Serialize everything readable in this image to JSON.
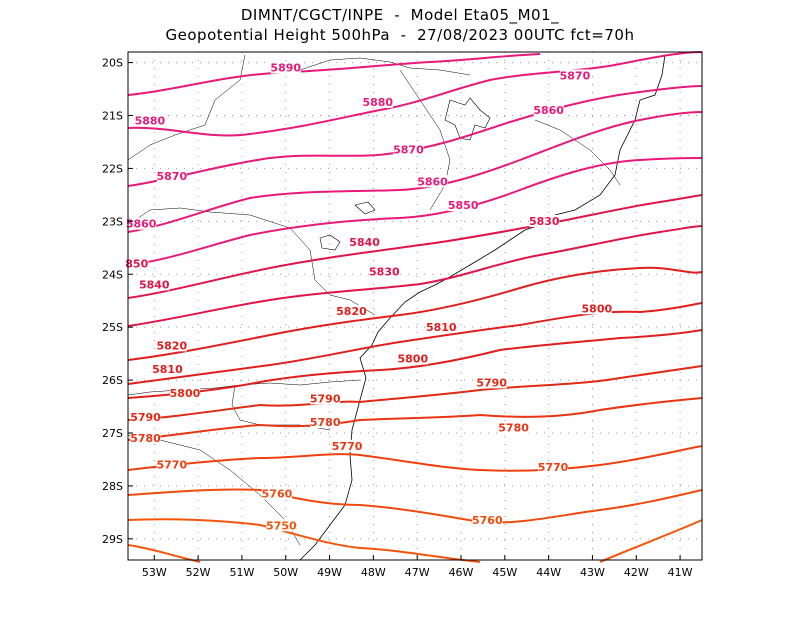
{
  "header": {
    "line1": "DIMNT/CGCT/INPE  -  Model Eta05_M01_",
    "line2": "Geopotential Height 500hPa  -  27/08/2023 00UTC fct=70h"
  },
  "map": {
    "lon_range": [
      -53.6,
      -40.5
    ],
    "lat_range": [
      -29.4,
      -19.8
    ],
    "lat_ticks": [
      {
        "value": -20,
        "label": "20S"
      },
      {
        "value": -21,
        "label": "21S"
      },
      {
        "value": -22,
        "label": "22S"
      },
      {
        "value": -23,
        "label": "23S"
      },
      {
        "value": -24,
        "label": "24S"
      },
      {
        "value": -25,
        "label": "25S"
      },
      {
        "value": -26,
        "label": "26S"
      },
      {
        "value": -27,
        "label": "27S"
      },
      {
        "value": -28,
        "label": "28S"
      },
      {
        "value": -29,
        "label": "29S"
      }
    ],
    "lon_ticks": [
      {
        "value": -53,
        "label": "53W"
      },
      {
        "value": -52,
        "label": "52W"
      },
      {
        "value": -51,
        "label": "51W"
      },
      {
        "value": -50,
        "label": "50W"
      },
      {
        "value": -49,
        "label": "49W"
      },
      {
        "value": -48,
        "label": "48W"
      },
      {
        "value": -47,
        "label": "47W"
      },
      {
        "value": -46,
        "label": "46W"
      },
      {
        "value": -45,
        "label": "45W"
      },
      {
        "value": -44,
        "label": "44W"
      },
      {
        "value": -43,
        "label": "43W"
      },
      {
        "value": -42,
        "label": "42W"
      },
      {
        "value": -41,
        "label": "41W"
      }
    ],
    "grid": "dotted"
  },
  "contour_labels": [
    {
      "text": "5890",
      "lon": -50.0,
      "lat": -20.15,
      "color": "#e8197a"
    },
    {
      "text": "5870",
      "lon": -43.4,
      "lat": -20.3,
      "color": "#e8197a"
    },
    {
      "text": "5880",
      "lon": -47.9,
      "lat": -20.8,
      "color": "#e8197a"
    },
    {
      "text": "5880",
      "lon": -53.1,
      "lat": -21.15,
      "color": "#e8197a"
    },
    {
      "text": "5860",
      "lon": -44.0,
      "lat": -20.95,
      "color": "#e8197a"
    },
    {
      "text": "5870",
      "lon": -47.2,
      "lat": -21.7,
      "color": "#e8197a"
    },
    {
      "text": "5870",
      "lon": -52.6,
      "lat": -22.2,
      "color": "#e8197a"
    },
    {
      "text": "5860",
      "lon": -46.65,
      "lat": -22.3,
      "color": "#e8197a"
    },
    {
      "text": "5850",
      "lon": -45.95,
      "lat": -22.75,
      "color": "#e8197a"
    },
    {
      "text": "5860",
      "lon": -53.3,
      "lat": -23.1,
      "color": "#e8197a"
    },
    {
      "text": "5830",
      "lon": -44.1,
      "lat": -23.05,
      "color": "#e0144a"
    },
    {
      "text": "5840",
      "lon": -48.2,
      "lat": -23.45,
      "color": "#e0144a"
    },
    {
      "text": "850",
      "lon": -53.4,
      "lat": -23.85,
      "color": "#e0144a"
    },
    {
      "text": "5830",
      "lon": -47.75,
      "lat": -24.0,
      "color": "#e0144a"
    },
    {
      "text": "5840",
      "lon": -53.0,
      "lat": -24.25,
      "color": "#e0144a"
    },
    {
      "text": "5820",
      "lon": -48.5,
      "lat": -24.75,
      "color": "#e01e1e"
    },
    {
      "text": "5800",
      "lon": -42.9,
      "lat": -24.7,
      "color": "#e01e1e"
    },
    {
      "text": "5810",
      "lon": -46.45,
      "lat": -25.05,
      "color": "#e01e1e"
    },
    {
      "text": "5820",
      "lon": -52.6,
      "lat": -25.4,
      "color": "#e01e1e"
    },
    {
      "text": "5800",
      "lon": -47.1,
      "lat": -25.65,
      "color": "#e01e1e"
    },
    {
      "text": "5810",
      "lon": -52.7,
      "lat": -25.85,
      "color": "#e01e1e"
    },
    {
      "text": "5790",
      "lon": -45.3,
      "lat": -26.1,
      "color": "#e02a14"
    },
    {
      "text": "5800",
      "lon": -52.3,
      "lat": -26.3,
      "color": "#e02a14"
    },
    {
      "text": "5790",
      "lon": -49.1,
      "lat": -26.4,
      "color": "#e02a14"
    },
    {
      "text": "5790",
      "lon": -53.2,
      "lat": -26.75,
      "color": "#e02a14"
    },
    {
      "text": "5780",
      "lon": -49.1,
      "lat": -26.85,
      "color": "#e83514"
    },
    {
      "text": "5780",
      "lon": -44.8,
      "lat": -26.95,
      "color": "#e83514"
    },
    {
      "text": "5780",
      "lon": -53.2,
      "lat": -27.15,
      "color": "#e83514"
    },
    {
      "text": "5770",
      "lon": -48.6,
      "lat": -27.3,
      "color": "#e83514"
    },
    {
      "text": "5770",
      "lon": -52.6,
      "lat": -27.65,
      "color": "#ee400f"
    },
    {
      "text": "5770",
      "lon": -43.9,
      "lat": -27.7,
      "color": "#ee400f"
    },
    {
      "text": "5760",
      "lon": -50.2,
      "lat": -28.2,
      "color": "#f04b0f"
    },
    {
      "text": "5760",
      "lon": -45.4,
      "lat": -28.7,
      "color": "#f04b0f"
    },
    {
      "text": "5750",
      "lon": -50.1,
      "lat": -28.8,
      "color": "#f5550a"
    }
  ]
}
